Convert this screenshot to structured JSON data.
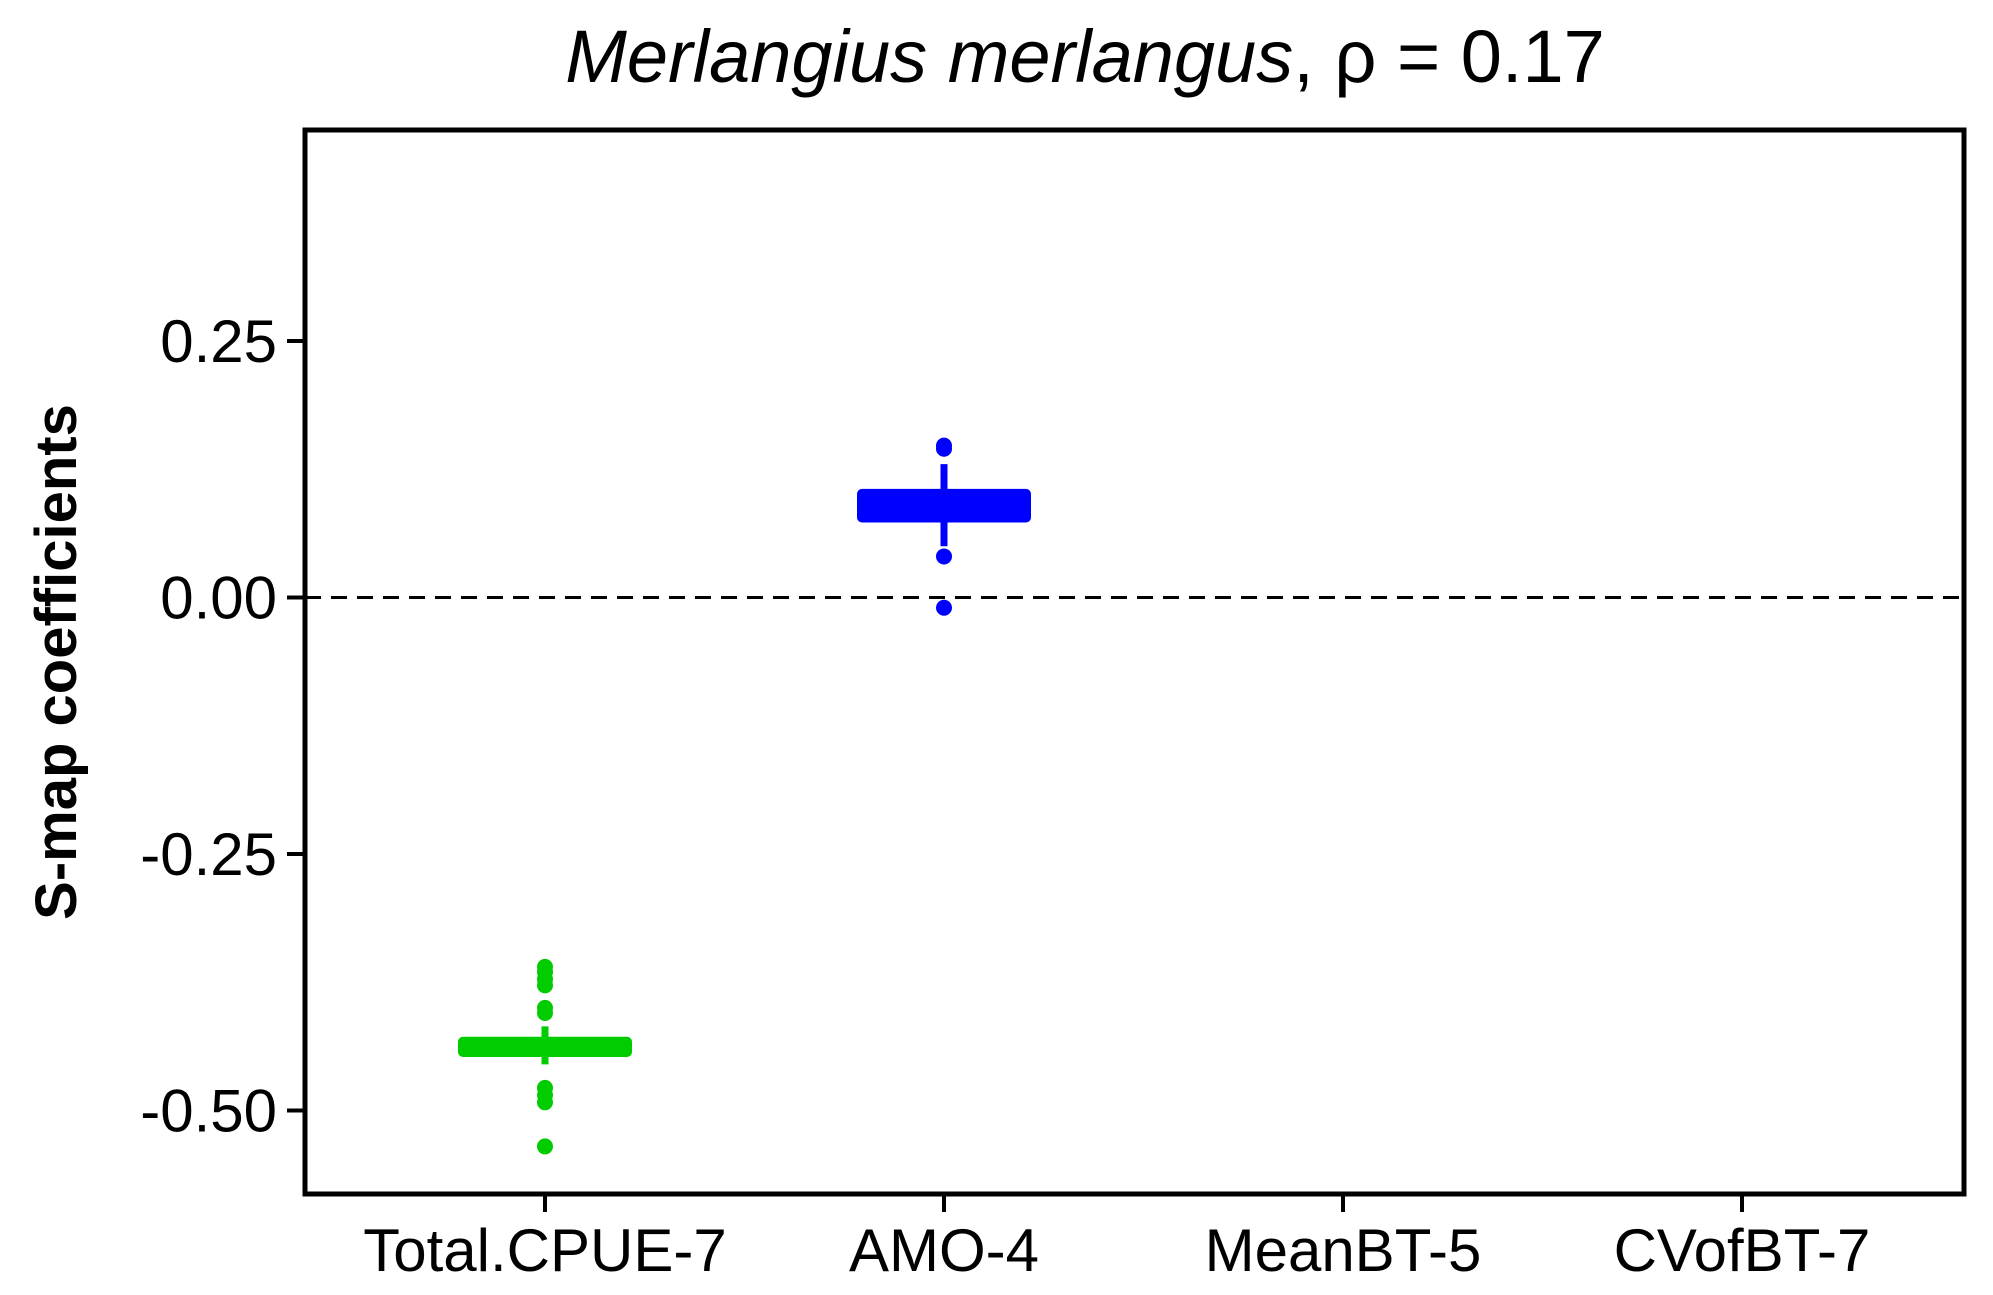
{
  "chart_data": {
    "type": "boxplot",
    "title": {
      "species": "Merlangius merlangus",
      "separator": ", ",
      "stat": "ρ = 0.17"
    },
    "xlabel": "",
    "ylabel": "S-map coefficients",
    "ylim": [
      -0.58,
      0.45
    ],
    "y_ticks": [
      0.25,
      0.0,
      -0.25,
      -0.5
    ],
    "y_tick_labels": [
      "0.25",
      "0.00",
      "-0.25",
      "-0.50"
    ],
    "reference_line": {
      "y": 0,
      "style": "dashed"
    },
    "categories": [
      "Total.CPUE-7",
      "AMO-4",
      "MeanBT-5",
      "CVofBT-7"
    ],
    "series": [
      {
        "category": "Total.CPUE-7",
        "color": "#00cc00",
        "q1": -0.443,
        "median": -0.438,
        "q3": -0.433,
        "whisker_low": -0.455,
        "whisker_high": -0.418,
        "outliers": [
          -0.36,
          -0.365,
          -0.372,
          -0.378,
          -0.4,
          -0.405,
          -0.478,
          -0.485,
          -0.492,
          -0.535
        ]
      },
      {
        "category": "AMO-4",
        "color": "#0000ff",
        "q1": 0.078,
        "median": 0.088,
        "q3": 0.101,
        "whisker_low": 0.05,
        "whisker_high": 0.13,
        "outliers": [
          0.145,
          0.148,
          0.04,
          -0.01
        ]
      }
    ]
  }
}
